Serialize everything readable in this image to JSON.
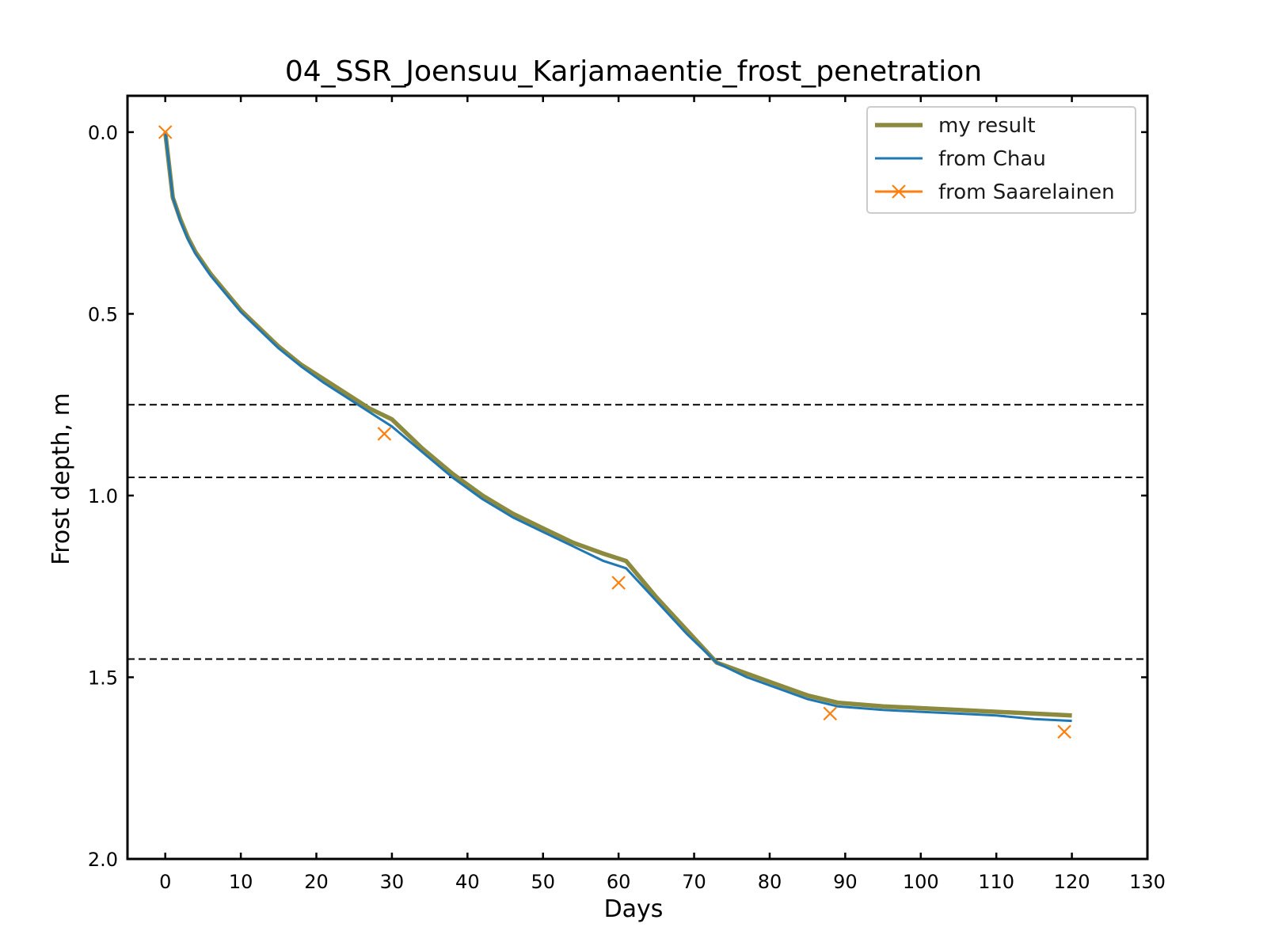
{
  "chart_data": {
    "type": "line",
    "title": "04_SSR_Joensuu_Karjamaentie_frost_penetration",
    "xlabel": "Days",
    "ylabel": "Frost depth, m",
    "xlim": [
      -5,
      130
    ],
    "ylim": [
      2.0,
      -0.1
    ],
    "y_inverted": true,
    "x_ticks": [
      0,
      10,
      20,
      30,
      40,
      50,
      60,
      70,
      80,
      90,
      100,
      110,
      120,
      130
    ],
    "y_ticks": [
      0.0,
      0.5,
      1.0,
      1.5,
      2.0
    ],
    "x_tick_labels": [
      "0",
      "10",
      "20",
      "30",
      "40",
      "50",
      "60",
      "70",
      "80",
      "90",
      "100",
      "110",
      "120",
      "130"
    ],
    "y_tick_labels": [
      "0.0",
      "0.5",
      "1.0",
      "1.5",
      "2.0"
    ],
    "grid": false,
    "legend_position": "top-right",
    "reference_lines": [
      {
        "y": 0.75,
        "style": "dashed",
        "color": "#000000"
      },
      {
        "y": 0.95,
        "style": "dashed",
        "color": "#000000"
      },
      {
        "y": 1.45,
        "style": "dashed",
        "color": "#000000"
      }
    ],
    "series": [
      {
        "name": "my result",
        "color": "#8c8a3e",
        "marker": "none",
        "x": [
          0,
          1,
          2,
          3,
          4,
          5,
          6,
          8,
          10,
          12,
          15,
          18,
          21,
          24,
          27,
          30,
          34,
          38,
          42,
          46,
          50,
          54,
          58,
          61,
          65,
          69,
          73,
          77,
          81,
          85,
          89,
          95,
          100,
          105,
          110,
          115,
          120
        ],
        "y": [
          0.0,
          0.18,
          0.24,
          0.29,
          0.33,
          0.36,
          0.39,
          0.44,
          0.49,
          0.53,
          0.59,
          0.64,
          0.68,
          0.72,
          0.76,
          0.79,
          0.87,
          0.94,
          1.0,
          1.05,
          1.09,
          1.13,
          1.16,
          1.18,
          1.28,
          1.37,
          1.46,
          1.49,
          1.52,
          1.55,
          1.57,
          1.58,
          1.585,
          1.59,
          1.595,
          1.6,
          1.605
        ]
      },
      {
        "name": "from Chau",
        "color": "#1f77b4",
        "marker": "none",
        "x": [
          0,
          1,
          2,
          3,
          4,
          5,
          6,
          8,
          10,
          12,
          15,
          18,
          21,
          24,
          27,
          30,
          34,
          38,
          42,
          46,
          50,
          54,
          58,
          61,
          65,
          69,
          73,
          77,
          81,
          85,
          89,
          95,
          100,
          105,
          110,
          115,
          120
        ],
        "y": [
          0.0,
          0.18,
          0.245,
          0.295,
          0.335,
          0.365,
          0.395,
          0.445,
          0.495,
          0.535,
          0.595,
          0.645,
          0.69,
          0.73,
          0.77,
          0.81,
          0.88,
          0.95,
          1.01,
          1.06,
          1.1,
          1.14,
          1.18,
          1.2,
          1.29,
          1.38,
          1.46,
          1.5,
          1.53,
          1.56,
          1.58,
          1.59,
          1.595,
          1.6,
          1.605,
          1.615,
          1.62
        ]
      },
      {
        "name": "from Saarelainen",
        "color": "#ff7f0e",
        "marker": "x",
        "linestyle": "none",
        "x": [
          0,
          29,
          60,
          88,
          119
        ],
        "y": [
          0.0,
          0.83,
          1.24,
          1.6,
          1.65
        ]
      }
    ]
  }
}
